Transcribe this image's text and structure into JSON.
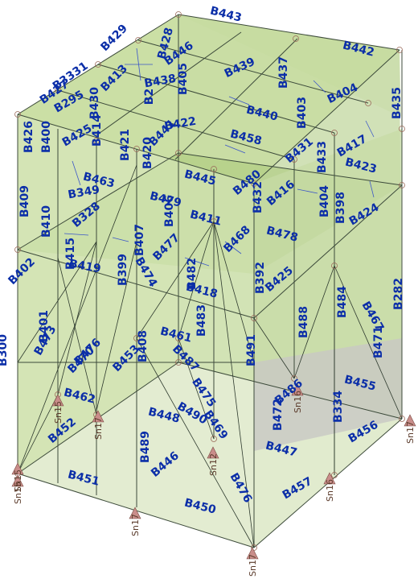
{
  "model": {
    "beam_labels": [
      {
        "id": "B443"
      },
      {
        "id": "B442"
      },
      {
        "id": "B429"
      },
      {
        "id": "B428"
      },
      {
        "id": "B446"
      },
      {
        "id": "B439"
      },
      {
        "id": "B437"
      },
      {
        "id": "B404"
      },
      {
        "id": "B435"
      },
      {
        "id": "B3331"
      },
      {
        "id": "B427"
      },
      {
        "id": "B295"
      },
      {
        "id": "B430"
      },
      {
        "id": "B413"
      },
      {
        "id": "B438"
      },
      {
        "id": "B405"
      },
      {
        "id": "B2"
      },
      {
        "id": "B440"
      },
      {
        "id": "B403"
      },
      {
        "id": "B426"
      },
      {
        "id": "B400"
      },
      {
        "id": "B425"
      },
      {
        "id": "B414"
      },
      {
        "id": "B421"
      },
      {
        "id": "B420"
      },
      {
        "id": "B441"
      },
      {
        "id": "B422"
      },
      {
        "id": "B458"
      },
      {
        "id": "B431"
      },
      {
        "id": "B417"
      },
      {
        "id": "B423"
      },
      {
        "id": "B409"
      },
      {
        "id": "B463"
      },
      {
        "id": "B349"
      },
      {
        "id": "B445"
      },
      {
        "id": "B480"
      },
      {
        "id": "B432"
      },
      {
        "id": "B416"
      },
      {
        "id": "B433"
      },
      {
        "id": "B398"
      },
      {
        "id": "B328"
      },
      {
        "id": "B404"
      },
      {
        "id": "B424"
      },
      {
        "id": "B479"
      },
      {
        "id": "B411"
      },
      {
        "id": "B406"
      },
      {
        "id": "B410"
      },
      {
        "id": "B478"
      },
      {
        "id": "B415"
      },
      {
        "id": "B407"
      },
      {
        "id": "B477"
      },
      {
        "id": "B468"
      },
      {
        "id": "B402"
      },
      {
        "id": "B419"
      },
      {
        "id": "B399"
      },
      {
        "id": "B392"
      },
      {
        "id": "B425"
      },
      {
        "id": "B474"
      },
      {
        "id": "B482"
      },
      {
        "id": "B418"
      },
      {
        "id": "B483"
      },
      {
        "id": "B282"
      },
      {
        "id": "B484"
      },
      {
        "id": "B401"
      },
      {
        "id": "B488"
      },
      {
        "id": "B467"
      },
      {
        "id": "B470"
      },
      {
        "id": "B473"
      },
      {
        "id": "B476"
      },
      {
        "id": "B408"
      },
      {
        "id": "B461"
      },
      {
        "id": "B471"
      },
      {
        "id": "B491"
      },
      {
        "id": "B453"
      },
      {
        "id": "B487"
      },
      {
        "id": "B486"
      },
      {
        "id": "B455"
      },
      {
        "id": "B472"
      },
      {
        "id": "B462"
      },
      {
        "id": "B475"
      },
      {
        "id": "B334"
      },
      {
        "id": "B452"
      },
      {
        "id": "B448"
      },
      {
        "id": "B490"
      },
      {
        "id": "B469"
      },
      {
        "id": "B489"
      },
      {
        "id": "B447"
      },
      {
        "id": "B456"
      },
      {
        "id": "B446"
      },
      {
        "id": "B451"
      },
      {
        "id": "B457"
      },
      {
        "id": "B450"
      },
      {
        "id": "B476"
      },
      {
        "id": "B300"
      }
    ],
    "support_labels": [
      {
        "id": "Sn15"
      },
      {
        "id": "Sn17"
      },
      {
        "id": "Sn17"
      },
      {
        "id": "Sn16"
      },
      {
        "id": "Sn16"
      },
      {
        "id": "Sn17"
      },
      {
        "id": "Sn12"
      },
      {
        "id": "Sn15"
      },
      {
        "id": "Sn17"
      },
      {
        "id": "Sn15"
      }
    ],
    "colors": {
      "frame_fill": "#cfe0ad",
      "panel_fill": "#b8d28c",
      "floor_fill": "#e3ecd2",
      "grey_fill": "#c8c8c4",
      "label": "#0b2ea8",
      "support": "#c98d8a",
      "brace": "#2e3a2e"
    }
  }
}
